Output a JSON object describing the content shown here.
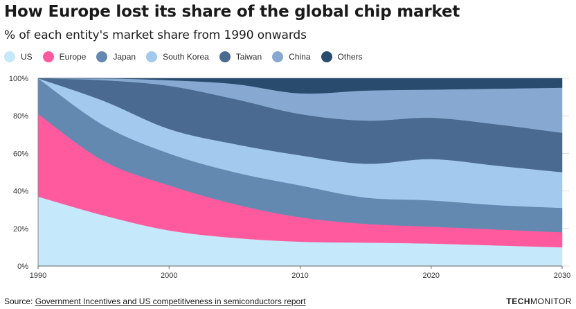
{
  "header": {
    "title": "How Europe lost its share of the global chip market",
    "subtitle": "% of each entity's market share from 1990 onwards"
  },
  "footer": {
    "source_prefix": "Source: ",
    "source_link": "Government Incentives and US competitiveness in semiconductors report",
    "brand_bold": "TECH",
    "brand_light": "MONITOR"
  },
  "chart_data": {
    "type": "area",
    "stacked": true,
    "title": "How Europe lost its share of the global chip market",
    "subtitle": "% of each entity's market share from 1990 onwards",
    "x": [
      1990,
      1995,
      2000,
      2005,
      2010,
      2015,
      2020,
      2025,
      2030
    ],
    "xticks": [
      "1990",
      "2000",
      "2010",
      "2020",
      "2030"
    ],
    "yticks": [
      "0%",
      "20%",
      "40%",
      "60%",
      "80%",
      "100%"
    ],
    "ylim": [
      0,
      100
    ],
    "xlim": [
      1990,
      2030
    ],
    "grid": true,
    "legend_position": "top-left",
    "series": [
      {
        "name": "US",
        "color": "#c5e8fa",
        "values": [
          37,
          27,
          19,
          15,
          13,
          12.5,
          12,
          11,
          10
        ]
      },
      {
        "name": "Europe",
        "color": "#ff5a9e",
        "values": [
          44,
          29,
          24,
          18,
          13,
          10,
          9,
          8.5,
          8
        ]
      },
      {
        "name": "Japan",
        "color": "#6489b0",
        "values": [
          19,
          19,
          17,
          17,
          17,
          14,
          14,
          13,
          13
        ]
      },
      {
        "name": "South Korea",
        "color": "#a4c9ee",
        "values": [
          0,
          13,
          13,
          15,
          16,
          18,
          22,
          21,
          19
        ]
      },
      {
        "name": "Taiwan",
        "color": "#4a6a91",
        "values": [
          0,
          11,
          23,
          24,
          22,
          23,
          22,
          22,
          21
        ]
      },
      {
        "name": "China",
        "color": "#87a8d0",
        "values": [
          0,
          1,
          3,
          8,
          11,
          16,
          15,
          19,
          24
        ]
      },
      {
        "name": "Others",
        "color": "#284b6e",
        "values": [
          0,
          0,
          1,
          3,
          8,
          6.5,
          6,
          5.5,
          5
        ]
      }
    ]
  }
}
